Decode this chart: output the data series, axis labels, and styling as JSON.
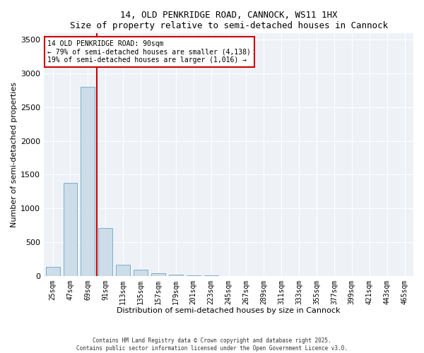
{
  "title1": "14, OLD PENKRIDGE ROAD, CANNOCK, WS11 1HX",
  "title2": "Size of property relative to semi-detached houses in Cannock",
  "xlabel": "Distribution of semi-detached houses by size in Cannock",
  "ylabel": "Number of semi-detached properties",
  "categories": [
    "25sqm",
    "47sqm",
    "69sqm",
    "91sqm",
    "113sqm",
    "135sqm",
    "157sqm",
    "179sqm",
    "201sqm",
    "223sqm",
    "245sqm",
    "267sqm",
    "289sqm",
    "311sqm",
    "333sqm",
    "355sqm",
    "377sqm",
    "399sqm",
    "421sqm",
    "443sqm",
    "465sqm"
  ],
  "values": [
    130,
    1380,
    2800,
    710,
    160,
    90,
    35,
    20,
    5,
    3,
    2,
    1,
    1,
    1,
    1,
    1,
    1,
    1,
    1,
    1,
    1
  ],
  "bar_color": "#ccdce8",
  "bar_edge_color": "#7aafc8",
  "vline_color": "#cc0000",
  "annotation_text": "14 OLD PENKRIDGE ROAD: 90sqm\n← 79% of semi-detached houses are smaller (4,138)\n19% of semi-detached houses are larger (1,016) →",
  "annotation_box_color": "#ffffff",
  "annotation_box_edge": "#cc0000",
  "ylim": [
    0,
    3600
  ],
  "yticks": [
    0,
    500,
    1000,
    1500,
    2000,
    2500,
    3000,
    3500
  ],
  "footer1": "Contains HM Land Registry data © Crown copyright and database right 2025.",
  "footer2": "Contains public sector information licensed under the Open Government Licence v3.0.",
  "bg_color": "#ffffff",
  "plot_bg_color": "#eef2f7",
  "grid_color": "#ffffff"
}
